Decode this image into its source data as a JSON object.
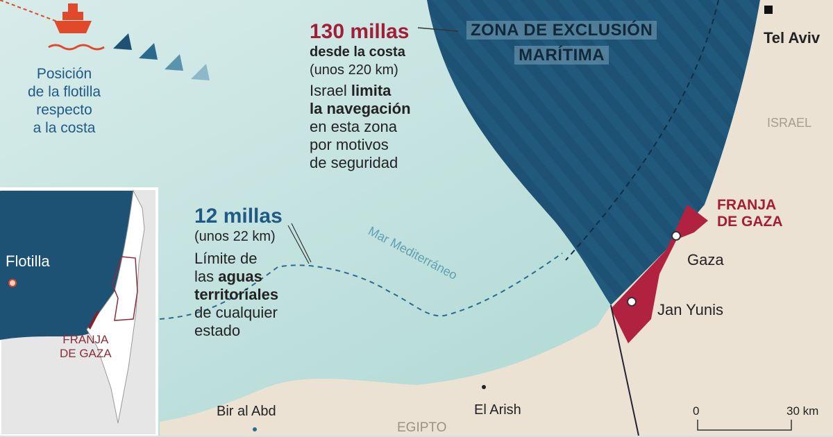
{
  "flotilla_note": {
    "lines": [
      "Posición",
      "de la flotilla",
      "respecto",
      "a la costa"
    ]
  },
  "exclusion": {
    "distance": "130 millas",
    "from_coast": "desde la costa",
    "km": "(unos 220 km)",
    "desc_1": "Israel ",
    "desc_1b": "limita",
    "desc_2": "la navegación",
    "desc_3": "en esta zona",
    "desc_4": "por motivos",
    "desc_5": "de seguridad",
    "zone_label_1": "ZONA DE EXCLUSIÓN",
    "zone_label_2": "MARÍTIMA"
  },
  "territorial": {
    "distance": "12 millas",
    "km": "(unos 22 km)",
    "desc_1": "Límite de",
    "desc_2a": "las ",
    "desc_2b": "aguas",
    "desc_3": "territoriales",
    "desc_4": "de cualquier",
    "desc_5": "estado"
  },
  "places": {
    "sea": "Mar Mediterráneo",
    "tel_aviv": "Tel Aviv",
    "israel": "ISRAEL",
    "gaza_strip_1": "FRANJA",
    "gaza_strip_2": "DE GAZA",
    "gaza": "Gaza",
    "jan_yunis": "Jan Yunis",
    "el_arish": "El Arish",
    "bir_al_abd": "Bir al Abd",
    "egipto": "EGIPTO"
  },
  "scale": {
    "start": "0",
    "end": "30 km"
  },
  "inset": {
    "flotilla": "Flotilla",
    "gaza_1": "FRANJA",
    "gaza_2": "DE GAZA"
  },
  "colors": {
    "sea": "#cfe7e4",
    "zone": "#1d5274",
    "land": "#ebe2d4",
    "gaza": "#b0223f",
    "accent_blue": "#1f5a86"
  },
  "icons": [
    "ship-icon",
    "flotilla-direction-arrows",
    "city-marker",
    "capital-marker"
  ]
}
